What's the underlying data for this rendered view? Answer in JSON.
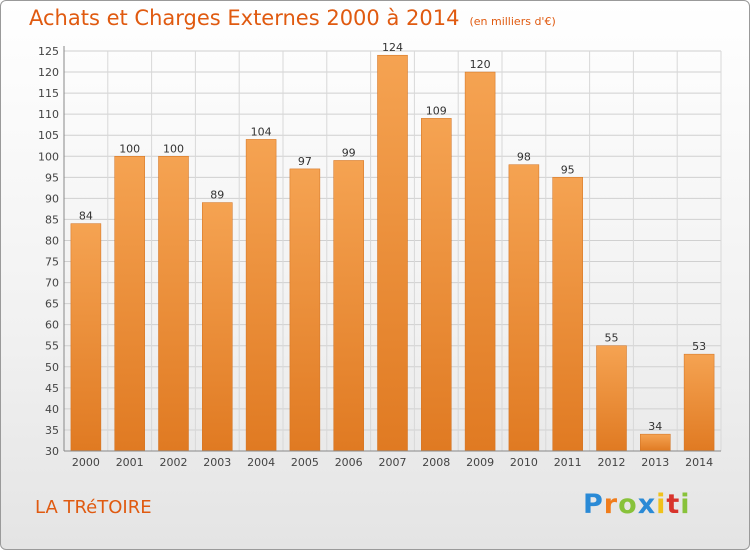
{
  "header": {
    "title": "Achats et Charges Externes 2000 à 2014",
    "unit": "(en milliers d'€)"
  },
  "footer": {
    "commune": "LA TRéTOIRE",
    "logo_letters": [
      "P",
      "r",
      "o",
      "x",
      "i",
      "t",
      "i"
    ],
    "logo_colors": [
      "#2a8ad6",
      "#f07c1b",
      "#88c23a",
      "#2a8ad6",
      "#f0c21b",
      "#d8342c",
      "#88c23a"
    ]
  },
  "colors": {
    "bar": "#f29a45",
    "bar_dark": "#e07a22",
    "text": "#e05a10"
  },
  "chart_data": {
    "type": "bar",
    "categories": [
      "2000",
      "2001",
      "2002",
      "2003",
      "2004",
      "2005",
      "2006",
      "2007",
      "2008",
      "2009",
      "2010",
      "2011",
      "2012",
      "2013",
      "2014"
    ],
    "values": [
      84,
      100,
      100,
      89,
      104,
      97,
      99,
      124,
      109,
      120,
      98,
      95,
      55,
      34,
      53
    ],
    "ylim": [
      30,
      125
    ],
    "yticks": [
      30,
      35,
      40,
      45,
      50,
      55,
      60,
      65,
      70,
      75,
      80,
      85,
      90,
      95,
      100,
      105,
      110,
      115,
      120,
      125
    ],
    "grid": true,
    "title": "Achats et Charges Externes 2000 à 2014",
    "xlabel": "",
    "ylabel": ""
  }
}
